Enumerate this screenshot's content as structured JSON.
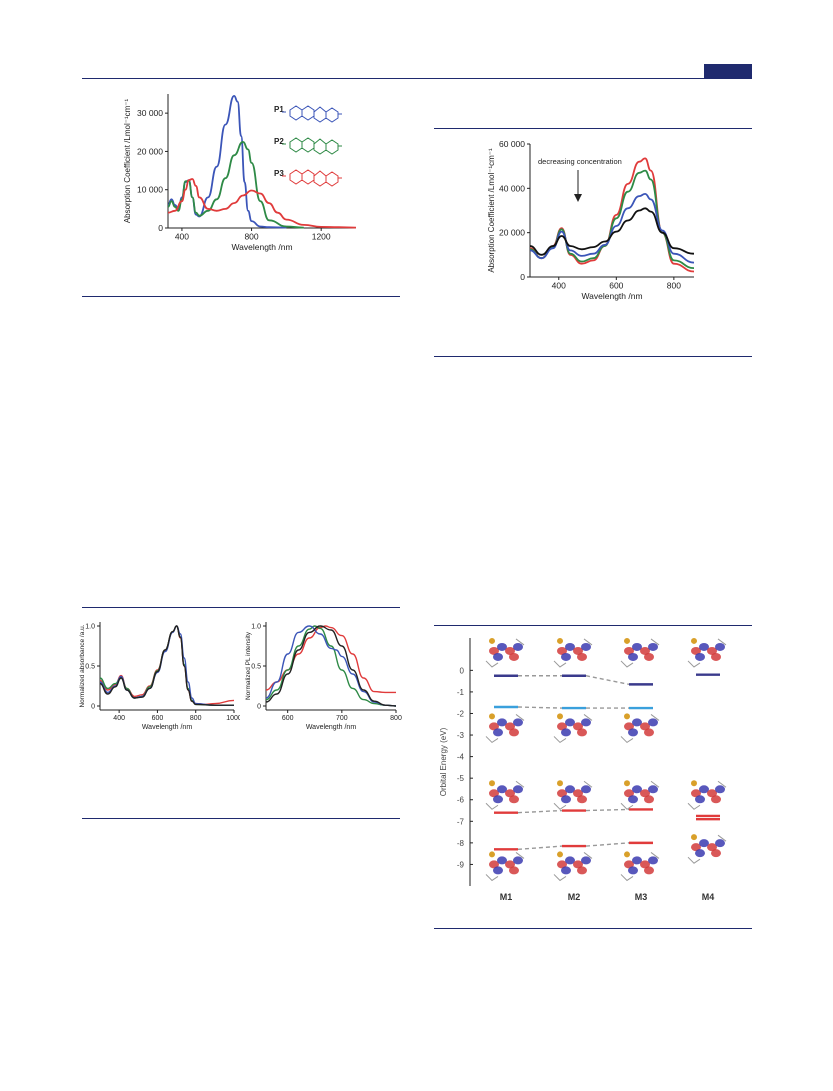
{
  "header": {
    "accent_color": "#1f2a6e"
  },
  "figures": {
    "fig_a": {
      "image_desc": "Absorption spectra of P1, P2, P3 with structures",
      "chart_data": {
        "type": "line",
        "xlabel": "Wavelength /nm",
        "ylabel": "Absorption Coefficient /Lmol⁻¹cm⁻¹",
        "xlim": [
          320,
          1400
        ],
        "ylim": [
          0,
          35000
        ],
        "xticks": [
          "400",
          "800",
          "1200"
        ],
        "yticks": [
          "0",
          "10 000",
          "20 000",
          "30 000"
        ],
        "series": [
          {
            "name": "P1",
            "color": "#3b55b8",
            "x": [
              320,
              340,
              360,
              380,
              400,
              420,
              440,
              460,
              480,
              500,
              550,
              600,
              650,
              700,
              720,
              740,
              760,
              780,
              800,
              850,
              900,
              1000
            ],
            "y": [
              6000,
              7500,
              6000,
              5000,
              8000,
              12000,
              12500,
              8000,
              3500,
              3000,
              8000,
              16000,
              27000,
              34500,
              33000,
              24000,
              12000,
              4500,
              1800,
              400,
              200,
              100
            ]
          },
          {
            "name": "P2",
            "color": "#2e8a46",
            "x": [
              320,
              340,
              360,
              380,
              400,
              420,
              440,
              460,
              480,
              500,
              550,
              600,
              650,
              700,
              750,
              780,
              800,
              850,
              900,
              1000,
              1100
            ],
            "y": [
              5500,
              7000,
              5500,
              4500,
              7500,
              12200,
              12300,
              8000,
              4000,
              3200,
              4500,
              7500,
              13000,
              19000,
              22500,
              20500,
              17000,
              7000,
              2000,
              400,
              100
            ]
          },
          {
            "name": "P3",
            "color": "#e03b3b",
            "x": [
              320,
              360,
              400,
              420,
              440,
              460,
              480,
              500,
              550,
              600,
              650,
              700,
              750,
              800,
              850,
              900,
              950,
              1000,
              1100,
              1200,
              1300,
              1400
            ],
            "y": [
              4000,
              4500,
              7000,
              10000,
              12500,
              12800,
              11000,
              8000,
              5000,
              4500,
              5000,
              6500,
              8500,
              9800,
              9000,
              6500,
              4000,
              2200,
              800,
              300,
              200,
              100
            ]
          }
        ]
      }
    },
    "fig_b": {
      "chart_data": {
        "type": "line",
        "xlabel": "Wavelength /nm",
        "ylabel": "Absorption Coefficient /Lmol⁻¹cm⁻¹",
        "annotation": "decreasing concentration",
        "xlim": [
          300,
          870
        ],
        "ylim": [
          0,
          60000
        ],
        "xticks": [
          "400",
          "600",
          "800"
        ],
        "yticks": [
          "0",
          "20 000",
          "40 000",
          "60 000"
        ],
        "series": [
          {
            "color": "#e03b3b",
            "x": [
              300,
              340,
              380,
              410,
              440,
              480,
              520,
              560,
              600,
              640,
              680,
              700,
              720,
              760,
              800,
              870
            ],
            "y": [
              13000,
              8500,
              14000,
              22000,
              10000,
              6000,
              7500,
              14000,
              28000,
              42000,
              52000,
              53500,
              48000,
              20000,
              6000,
              2500
            ]
          },
          {
            "color": "#2e8a46",
            "x": [
              300,
              340,
              380,
              410,
              440,
              480,
              520,
              560,
              600,
              640,
              680,
              700,
              720,
              760,
              800,
              870
            ],
            "y": [
              12500,
              8500,
              13500,
              21500,
              10500,
              7000,
              8500,
              14000,
              26500,
              38500,
              47000,
              48000,
              44000,
              20000,
              7500,
              4000
            ]
          },
          {
            "color": "#3b55b8",
            "x": [
              300,
              340,
              380,
              410,
              440,
              480,
              520,
              560,
              600,
              640,
              680,
              700,
              720,
              760,
              800,
              870
            ],
            "y": [
              12000,
              8500,
              13000,
              20500,
              12000,
              9500,
              10500,
              14500,
              23000,
              31000,
              36500,
              37500,
              35000,
              21000,
              10500,
              6500
            ]
          },
          {
            "color": "#111111",
            "x": [
              300,
              340,
              380,
              410,
              440,
              480,
              520,
              560,
              600,
              640,
              680,
              700,
              720,
              760,
              800,
              870
            ],
            "y": [
              14000,
              10000,
              14000,
              18500,
              14000,
              12500,
              13500,
              16000,
              20500,
              25500,
              30000,
              31000,
              29500,
              20000,
              13000,
              10500
            ]
          }
        ]
      }
    },
    "fig_c": {
      "chart_data": [
        {
          "type": "line",
          "xlabel": "Wavelength /nm",
          "ylabel": "Normalized absorbance /a.u.",
          "xlim": [
            300,
            1000
          ],
          "ylim": [
            -0.05,
            1.05
          ],
          "xticks": [
            "400",
            "600",
            "800",
            "1000"
          ],
          "yticks": [
            "0",
            "0.5",
            "1.0"
          ],
          "series": [
            {
              "color": "#e03b3b",
              "x": [
                300,
                340,
                380,
                410,
                440,
                480,
                520,
                560,
                600,
                640,
                680,
                700,
                720,
                740,
                760,
                780,
                800,
                850,
                900,
                1000
              ],
              "y": [
                0.32,
                0.2,
                0.27,
                0.38,
                0.22,
                0.12,
                0.14,
                0.25,
                0.45,
                0.7,
                0.93,
                1.0,
                0.85,
                0.5,
                0.2,
                0.06,
                0.03,
                0.02,
                0.03,
                0.07
              ]
            },
            {
              "color": "#2e8a46",
              "x": [
                300,
                340,
                380,
                410,
                440,
                480,
                520,
                560,
                600,
                640,
                680,
                700,
                720,
                740,
                760,
                780,
                800,
                900,
                1000
              ],
              "y": [
                0.35,
                0.22,
                0.28,
                0.36,
                0.22,
                0.1,
                0.12,
                0.24,
                0.44,
                0.7,
                0.93,
                1.0,
                0.86,
                0.52,
                0.22,
                0.07,
                0.02,
                0.01,
                0.01
              ]
            },
            {
              "color": "#3b55b8",
              "x": [
                300,
                340,
                380,
                410,
                440,
                480,
                520,
                560,
                600,
                640,
                680,
                700,
                720,
                740,
                760,
                780,
                800,
                900,
                1000
              ],
              "y": [
                0.3,
                0.17,
                0.25,
                0.37,
                0.2,
                0.1,
                0.12,
                0.22,
                0.42,
                0.68,
                0.92,
                1.0,
                0.9,
                0.6,
                0.3,
                0.1,
                0.03,
                0.01,
                0.01
              ]
            },
            {
              "color": "#222222",
              "x": [
                300,
                340,
                380,
                410,
                440,
                480,
                520,
                560,
                600,
                640,
                680,
                700,
                720,
                740,
                760,
                780,
                800,
                900,
                1000
              ],
              "y": [
                0.28,
                0.15,
                0.24,
                0.35,
                0.2,
                0.1,
                0.11,
                0.22,
                0.43,
                0.7,
                0.93,
                1.0,
                0.86,
                0.5,
                0.2,
                0.06,
                0.02,
                0.01,
                0.01
              ]
            }
          ]
        },
        {
          "type": "line",
          "xlabel": "Wavelength /nm",
          "ylabel": "Normalized PL intensity",
          "xlim": [
            560,
            800
          ],
          "ylim": [
            -0.05,
            1.05
          ],
          "xticks": [
            "600",
            "700",
            "800"
          ],
          "yticks": [
            "0",
            "0.5",
            "1.0"
          ],
          "series": [
            {
              "color": "#e03b3b",
              "x": [
                560,
                580,
                600,
                620,
                640,
                660,
                670,
                680,
                700,
                720,
                740,
                760,
                780,
                800
              ],
              "y": [
                0.2,
                0.3,
                0.45,
                0.65,
                0.85,
                0.98,
                1.0,
                0.98,
                0.88,
                0.65,
                0.35,
                0.18,
                0.17,
                0.17
              ]
            },
            {
              "color": "#2e8a46",
              "x": [
                560,
                580,
                600,
                620,
                640,
                650,
                660,
                680,
                700,
                720,
                740,
                760,
                780,
                800
              ],
              "y": [
                0.08,
                0.2,
                0.45,
                0.75,
                0.96,
                1.0,
                0.97,
                0.75,
                0.45,
                0.22,
                0.08,
                0.03,
                0.01,
                0.0
              ]
            },
            {
              "color": "#3b55b8",
              "x": [
                560,
                580,
                600,
                620,
                640,
                660,
                680,
                690,
                700,
                720,
                740,
                760,
                780,
                800
              ],
              "y": [
                0.1,
                0.3,
                0.65,
                0.92,
                1.0,
                0.9,
                0.72,
                0.7,
                0.62,
                0.4,
                0.18,
                0.05,
                0.01,
                0.0
              ]
            },
            {
              "color": "#222222",
              "x": [
                560,
                580,
                600,
                620,
                640,
                660,
                680,
                700,
                720,
                740,
                760,
                780,
                800
              ],
              "y": [
                0.05,
                0.15,
                0.4,
                0.7,
                0.92,
                1.0,
                0.95,
                0.75,
                0.45,
                0.2,
                0.06,
                0.01,
                0.0
              ]
            }
          ]
        }
      ]
    },
    "fig_d": {
      "ylabel": "Orbital Energy (eV)",
      "yticks": [
        "0",
        "-1",
        "-2",
        "-3",
        "-4",
        "-5",
        "-6",
        "-7",
        "-8",
        "-9"
      ],
      "columns": [
        "M1",
        "M2",
        "M3",
        "M4"
      ],
      "levels": {
        "lumo1": [
          -0.25,
          -0.25,
          -0.65,
          -0.2
        ],
        "lumo": [
          -1.7,
          -1.75,
          -1.75,
          null
        ],
        "homo": [
          -6.6,
          -6.5,
          -6.45,
          -6.75
        ],
        "homo1": [
          -8.3,
          -8.15,
          -8.0,
          -6.9
        ]
      },
      "colors": {
        "lumo1": "#3a3a8c",
        "lumo": "#3aa0dc",
        "homo": "#e03b3b",
        "homo1": "#e03b3b"
      }
    }
  }
}
